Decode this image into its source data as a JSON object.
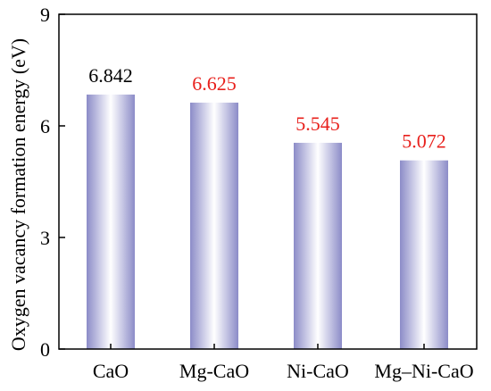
{
  "chart_data": {
    "type": "bar",
    "title": "",
    "xlabel": "",
    "ylabel": "Oxygen vacancy formation energy (eV)",
    "categories": [
      "CaO",
      "Mg-CaO",
      "Ni-CaO",
      "Mg–Ni-CaO"
    ],
    "values": [
      6.842,
      6.625,
      5.545,
      5.072
    ],
    "data_labels": [
      "6.842",
      "6.625",
      "5.545",
      "5.072"
    ],
    "label_colors": [
      "#000000",
      "#e8201c",
      "#e8201c",
      "#e8201c"
    ],
    "ylim": [
      0,
      9
    ],
    "yticks": [
      0,
      3,
      6,
      9
    ],
    "grid": false,
    "bar_gradient": {
      "edge": "#8c8cc8",
      "center": "#ffffff"
    }
  }
}
